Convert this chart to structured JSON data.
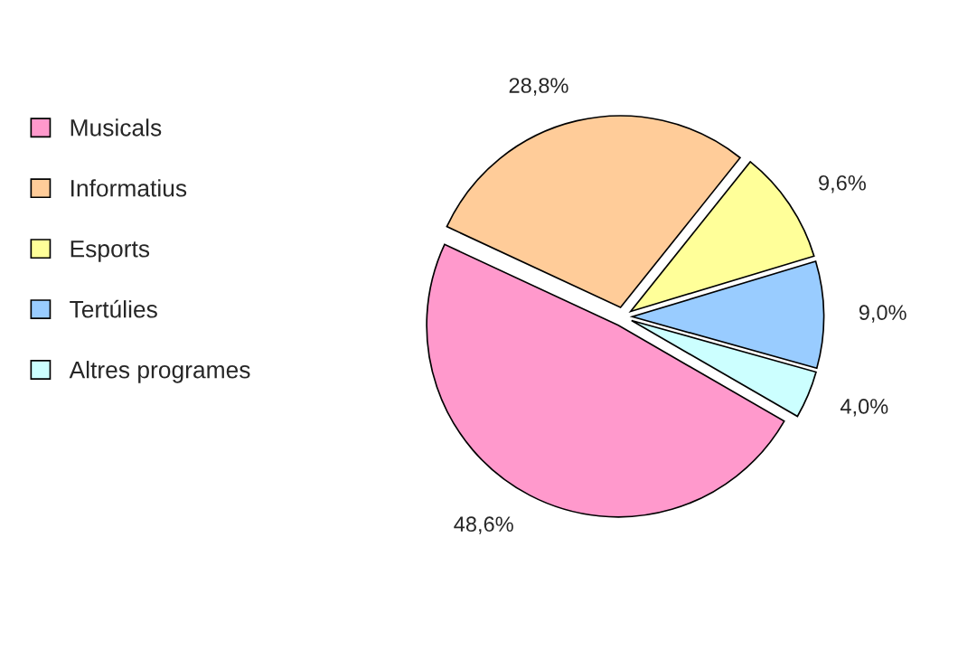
{
  "chart_data": {
    "type": "pie",
    "categories": [
      "Musicals",
      "Informatius",
      "Esports",
      "Tertúlies",
      "Altres programes"
    ],
    "values": [
      48.6,
      28.8,
      9.6,
      9.0,
      4.0
    ],
    "colors": [
      "#ff99cc",
      "#ffcc99",
      "#ffff99",
      "#99ccff",
      "#ccffff"
    ],
    "value_labels": [
      "48,6%",
      "28,8%",
      "9,6%",
      "9,0%",
      "4,0%"
    ],
    "legend": "left"
  }
}
